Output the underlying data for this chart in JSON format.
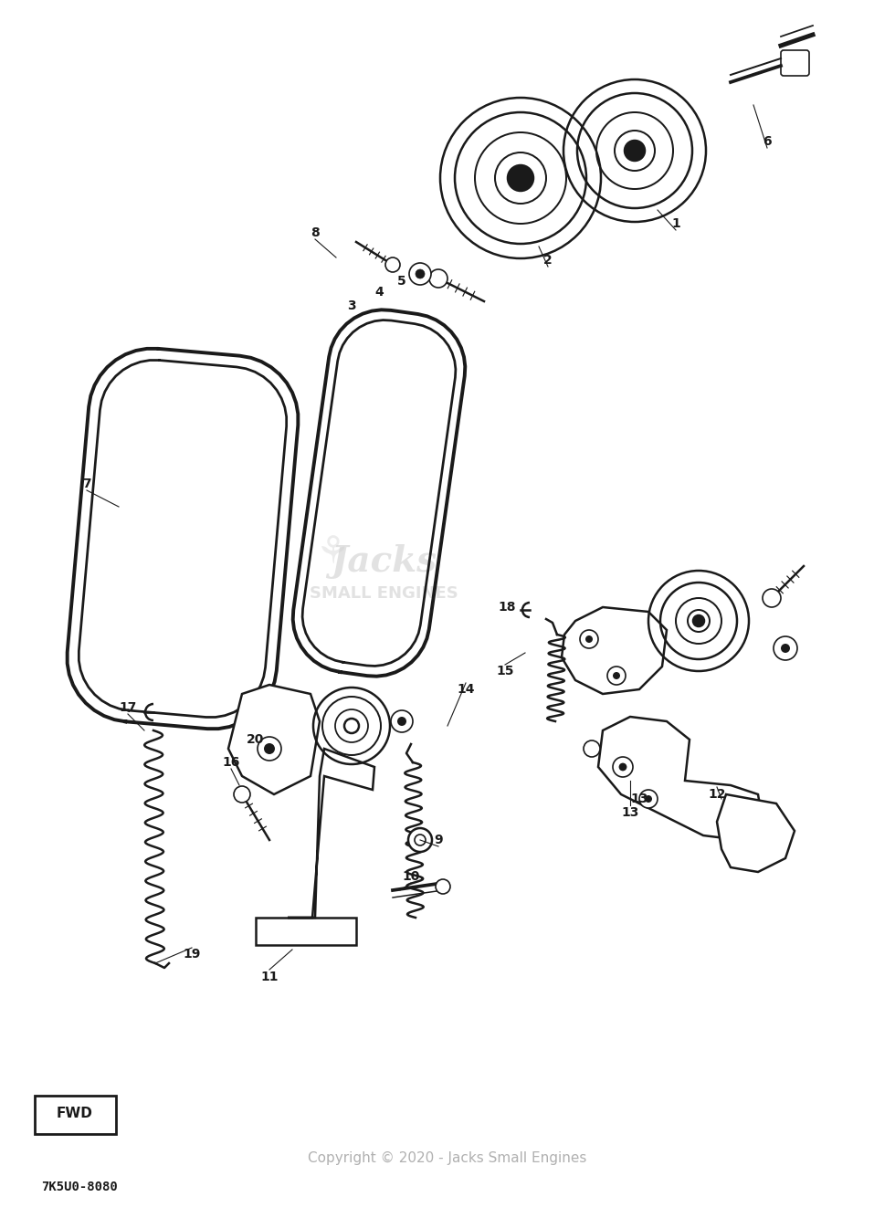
{
  "bg_color": "#ffffff",
  "line_color": "#1a1a1a",
  "text_color": "#1a1a1a",
  "watermark_color": "#d0d0d0",
  "copyright_text": "Copyright © 2020 - Jacks Small Engines",
  "part_code": "7K5U0-8080",
  "fwd_label": "FWD",
  "fig_w": 9.8,
  "fig_h": 13.34,
  "dpi": 100,
  "xlim": [
    0,
    980
  ],
  "ylim": [
    0,
    1334
  ]
}
